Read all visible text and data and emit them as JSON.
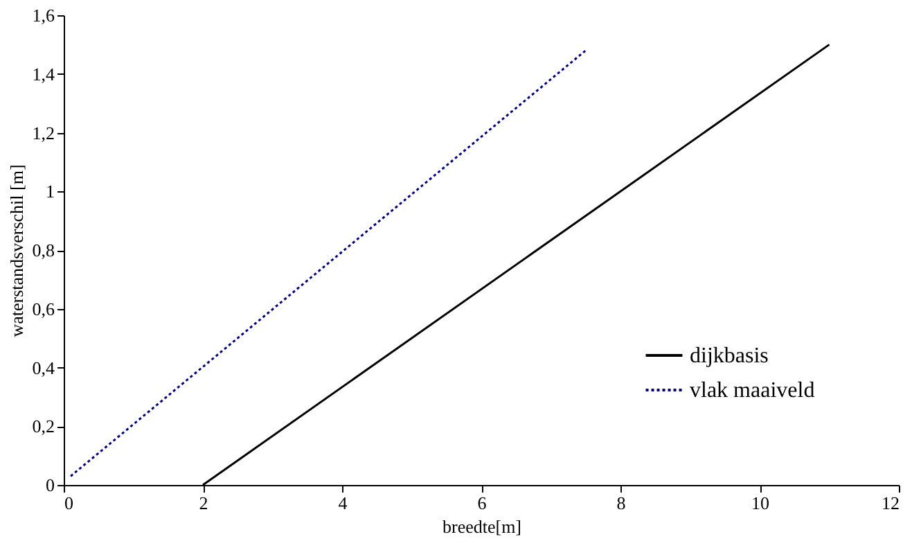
{
  "chart_data": {
    "type": "line",
    "xlabel": "breedte[m]",
    "ylabel": "waterstandsverschil [m]",
    "series": [
      {
        "name": "dijkbasis",
        "color": "#000000",
        "line_style": "solid",
        "x": [
          2,
          11
        ],
        "values": [
          0,
          1.5
        ]
      },
      {
        "name": "vlak maaiveld",
        "color": "#000080",
        "line_style": "dotted",
        "x": [
          0.1,
          7.5
        ],
        "values": [
          0.03,
          1.48
        ]
      }
    ],
    "xlim": [
      0,
      12
    ],
    "xticks": [
      0,
      2,
      4,
      6,
      8,
      10,
      12
    ],
    "ylim": [
      0,
      1.6
    ],
    "yticks": [
      0,
      {
        "value": 0.2,
        "label": "0,2"
      },
      {
        "value": 0.4,
        "label": "0,4"
      },
      {
        "value": 0.6,
        "label": "0,6"
      },
      {
        "value": 0.8,
        "label": "0,8"
      },
      1,
      {
        "value": 1.2,
        "label": "1,2"
      },
      {
        "value": 1.4,
        "label": "1,4"
      },
      {
        "value": 1.6,
        "label": "1,6"
      }
    ],
    "grid": false,
    "legend": "bottom right",
    "marker": "none"
  }
}
